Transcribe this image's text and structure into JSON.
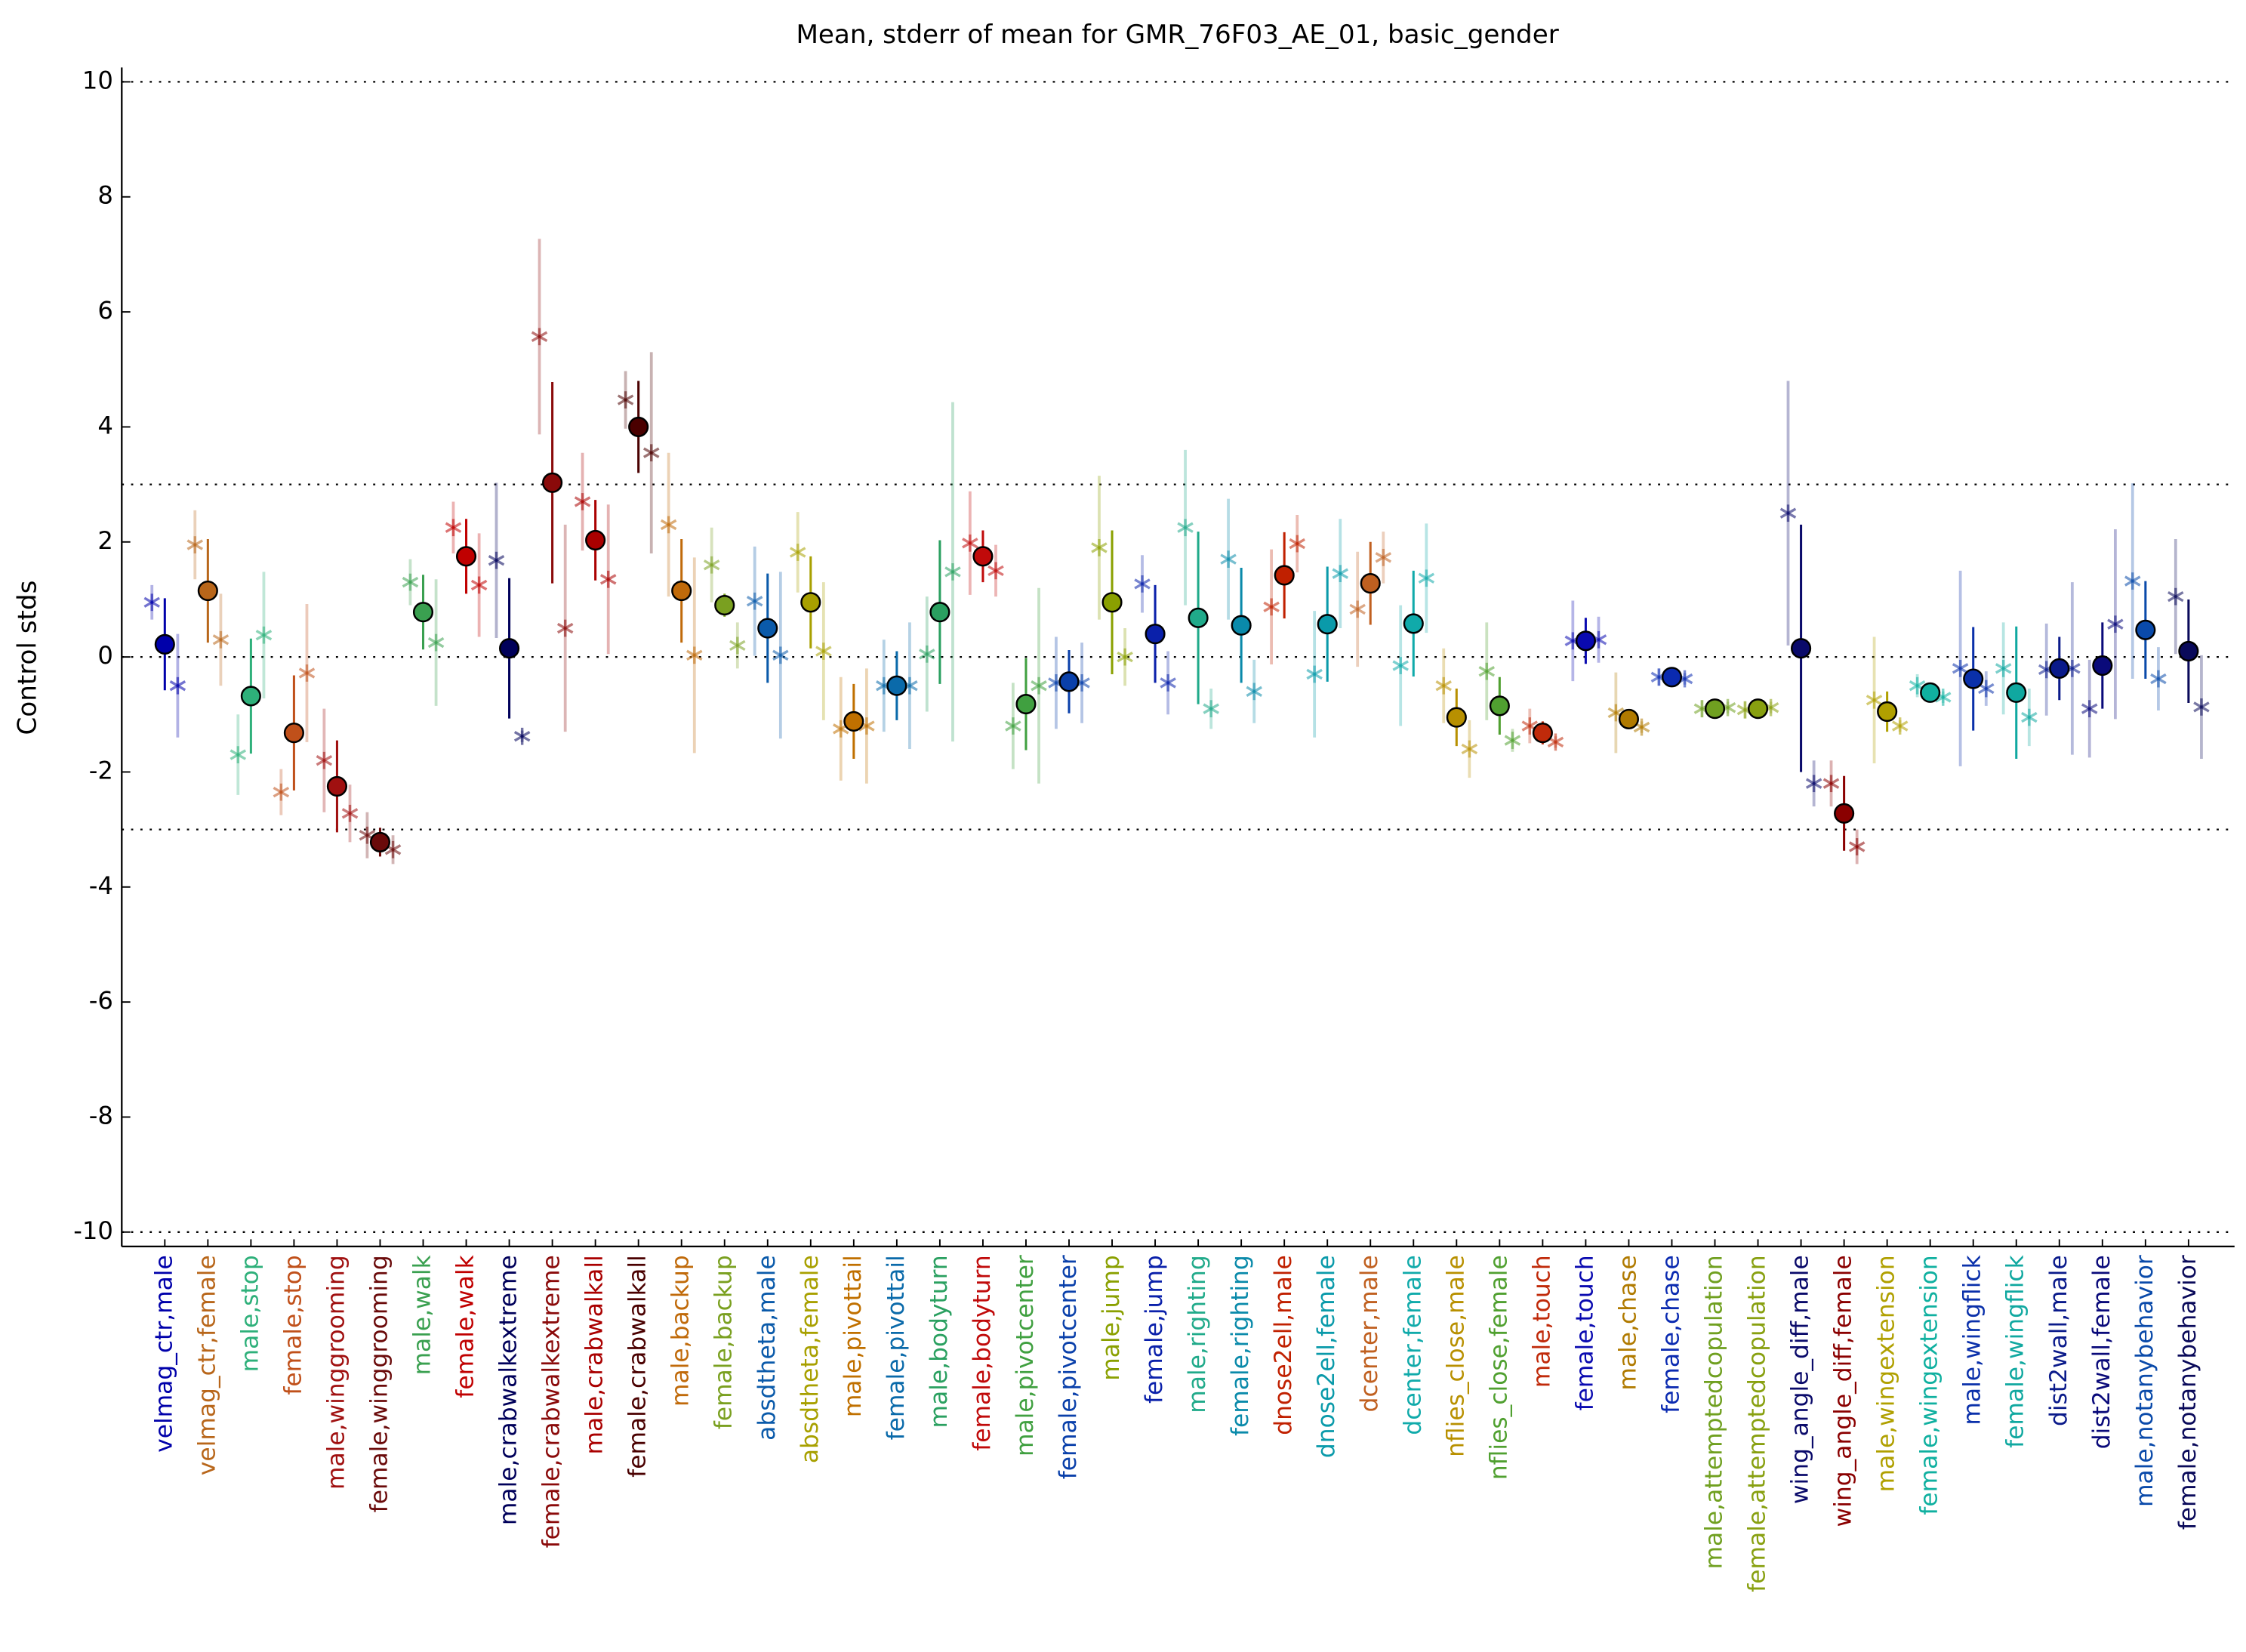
{
  "chart_data": {
    "type": "errorbar",
    "title": "Mean, stderr of mean for GMR_76F03_AE_01, basic_gender",
    "y_label": "Control stds",
    "categories": [
      "velmag_ctr,male",
      "velmag_ctr,female",
      "male,stop",
      "female,stop",
      "male,winggrooming",
      "female,winggrooming",
      "male,walk",
      "female,walk",
      "male,crabwalkextreme",
      "female,crabwalkextreme",
      "male,crabwalkall",
      "female,crabwalkall",
      "male,backup",
      "female,backup",
      "absdtheta,male",
      "absdtheta,female",
      "male,pivottail",
      "female,pivottail",
      "male,bodyturn",
      "female,bodyturn",
      "male,pivotcenter",
      "female,pivotcenter",
      "male,jump",
      "female,jump",
      "male,righting",
      "female,righting",
      "dnose2ell,male",
      "dnose2ell,female",
      "dcenter,male",
      "dcenter,female",
      "nflies_close,male",
      "nflies_close,female",
      "male,touch",
      "female,touch",
      "male,chase",
      "female,chase",
      "male,attemptedcopulation",
      "female,attemptedcopulation",
      "wing_angle_diff,male",
      "wing_angle_diff,female",
      "male,wingextension",
      "female,wingextension",
      "male,wingflick",
      "female,wingflick",
      "dist2wall,male",
      "dist2wall,female",
      "male,notanybehavior",
      "female,notanybehavior"
    ],
    "colors": [
      "#0000aa",
      "#b8661a",
      "#2eb07a",
      "#c0501a",
      "#a01010",
      "#6a0a0a",
      "#3aa050",
      "#c00000",
      "#00005a",
      "#8a0a0a",
      "#aa0000",
      "#4a0000",
      "#c06a0a",
      "#7aa020",
      "#0a5aaa",
      "#a8a000",
      "#c07000",
      "#0a6aaa",
      "#2aa060",
      "#c00a0a",
      "#40a040",
      "#0a40aa",
      "#8aa000",
      "#0a20aa",
      "#20aa8a",
      "#0a8aaa",
      "#c02000",
      "#0a9aaa",
      "#c06020",
      "#10aaaa",
      "#b89000",
      "#50a030",
      "#c02a0a",
      "#0a0ab0",
      "#b07a00",
      "#0a2ab0",
      "#70a020",
      "#88a010",
      "#0a0a6a",
      "#8a0000",
      "#b0a000",
      "#10b0a0",
      "#0a30aa",
      "#10a8a0",
      "#0a1a8a",
      "#0a0a7a",
      "#0a4aaa",
      "#0a0a5a"
    ],
    "means": [
      0.22,
      1.15,
      -0.68,
      -1.32,
      -2.25,
      -3.22,
      0.78,
      1.75,
      0.15,
      3.03,
      2.03,
      4.0,
      1.15,
      0.9,
      0.5,
      0.95,
      -1.12,
      -0.5,
      0.78,
      1.75,
      -0.82,
      -0.43,
      0.95,
      0.4,
      0.68,
      0.55,
      1.42,
      0.57,
      1.28,
      0.58,
      -1.05,
      -0.85,
      -1.32,
      0.28,
      -1.08,
      -0.35,
      -0.9,
      -0.9,
      0.15,
      -2.72,
      -0.95,
      -0.62,
      -0.38,
      -0.62,
      -0.2,
      -0.15,
      0.47,
      0.1
    ],
    "mean_errors": [
      0.8,
      0.9,
      1.0,
      1.0,
      0.8,
      0.25,
      0.65,
      0.65,
      1.22,
      1.75,
      0.7,
      0.8,
      0.9,
      0.2,
      0.95,
      0.8,
      0.65,
      0.6,
      1.25,
      0.45,
      0.8,
      0.55,
      1.25,
      0.85,
      1.5,
      1.0,
      0.75,
      1.0,
      0.72,
      0.92,
      0.5,
      0.5,
      0.2,
      0.4,
      0.15,
      0.1,
      0.08,
      0.05,
      2.15,
      0.65,
      0.35,
      0.1,
      0.9,
      1.15,
      0.55,
      0.75,
      0.85,
      0.9
    ],
    "left_values": [
      0.95,
      1.95,
      -1.7,
      -2.35,
      -1.8,
      -3.1,
      1.3,
      2.25,
      1.68,
      5.57,
      2.7,
      4.47,
      2.3,
      1.6,
      0.97,
      1.82,
      -1.25,
      -0.5,
      0.05,
      1.98,
      -1.2,
      -0.45,
      1.9,
      1.27,
      2.25,
      1.7,
      0.87,
      -0.3,
      0.83,
      -0.15,
      -0.5,
      -0.25,
      -1.2,
      0.28,
      -0.97,
      -0.35,
      -0.9,
      -0.92,
      2.5,
      -2.2,
      -0.75,
      -0.5,
      -0.2,
      -0.2,
      -0.22,
      -0.9,
      1.32,
      1.05
    ],
    "left_errors": [
      0.3,
      0.6,
      0.7,
      0.4,
      0.9,
      0.4,
      0.4,
      0.45,
      1.35,
      1.7,
      0.85,
      0.5,
      1.25,
      0.65,
      0.95,
      0.7,
      0.9,
      0.8,
      1.0,
      0.9,
      0.75,
      0.8,
      1.25,
      0.5,
      1.35,
      1.05,
      1.0,
      1.1,
      1.0,
      1.05,
      0.65,
      0.85,
      0.3,
      0.7,
      0.7,
      0.15,
      0.15,
      0.15,
      2.3,
      0.4,
      1.1,
      0.2,
      1.7,
      0.8,
      0.8,
      0.85,
      1.7,
      1.0
    ],
    "right_values": [
      -0.5,
      0.3,
      0.38,
      -0.28,
      -2.72,
      -3.35,
      0.25,
      1.25,
      -1.38,
      0.5,
      1.35,
      3.55,
      0.03,
      0.2,
      0.03,
      0.1,
      -1.2,
      -0.5,
      1.48,
      1.5,
      -0.5,
      -0.45,
      0.0,
      -0.45,
      -0.9,
      -0.6,
      1.97,
      1.45,
      1.73,
      1.37,
      -1.6,
      -1.45,
      -1.48,
      0.3,
      -1.22,
      -0.38,
      -0.88,
      -0.88,
      -2.2,
      -3.3,
      -1.2,
      -0.7,
      -0.55,
      -1.05,
      -0.2,
      0.57,
      -0.38,
      -0.87
    ],
    "right_errors": [
      0.9,
      0.8,
      1.1,
      1.2,
      0.5,
      0.25,
      1.1,
      0.9,
      0.1,
      1.8,
      1.3,
      1.75,
      1.7,
      0.4,
      1.45,
      1.2,
      1.0,
      1.1,
      2.95,
      0.45,
      1.7,
      0.7,
      0.5,
      0.55,
      0.35,
      0.55,
      0.5,
      0.95,
      0.45,
      0.95,
      0.5,
      0.2,
      0.1,
      0.4,
      0.1,
      0.1,
      0.1,
      0.1,
      0.4,
      0.3,
      0.1,
      0.1,
      0.3,
      0.5,
      1.5,
      1.65,
      0.55,
      0.9
    ],
    "ylim": [
      -10.25,
      10.25
    ],
    "yticks": [
      -10,
      -8,
      -6,
      -4,
      -2,
      0,
      2,
      4,
      6,
      8,
      10
    ],
    "reference_lines": [
      -10,
      -3,
      0,
      3,
      10
    ]
  }
}
